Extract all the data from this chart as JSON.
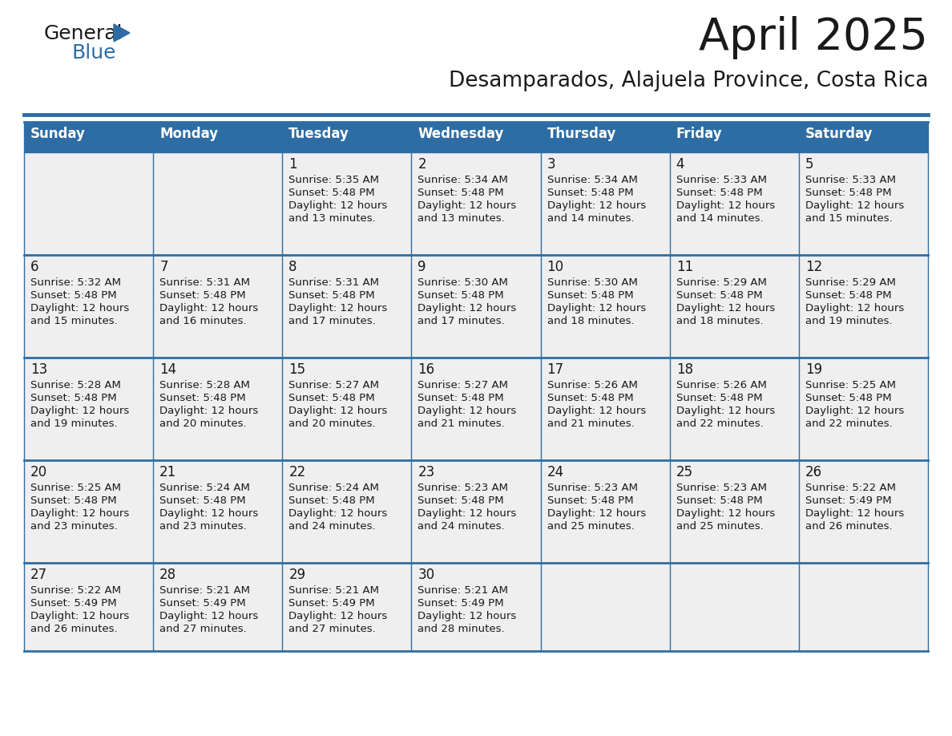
{
  "title": "April 2025",
  "subtitle": "Desamparados, Alajuela Province, Costa Rica",
  "header_bg_color": "#2E6DA4",
  "header_text_color": "#FFFFFF",
  "cell_bg_color": "#EFEFEF",
  "border_color": "#2E6DA4",
  "title_color": "#1a1a1a",
  "subtitle_color": "#1a1a1a",
  "day_names": [
    "Sunday",
    "Monday",
    "Tuesday",
    "Wednesday",
    "Thursday",
    "Friday",
    "Saturday"
  ],
  "logo_general_color": "#1a1a1a",
  "logo_blue_color": "#2E6DA4",
  "logo_triangle_color": "#2E6DA4",
  "days": [
    {
      "day": 1,
      "col": 2,
      "row": 0,
      "sunrise": "5:35 AM",
      "sunset": "5:48 PM",
      "daylight_suffix": "13 minutes."
    },
    {
      "day": 2,
      "col": 3,
      "row": 0,
      "sunrise": "5:34 AM",
      "sunset": "5:48 PM",
      "daylight_suffix": "13 minutes."
    },
    {
      "day": 3,
      "col": 4,
      "row": 0,
      "sunrise": "5:34 AM",
      "sunset": "5:48 PM",
      "daylight_suffix": "14 minutes."
    },
    {
      "day": 4,
      "col": 5,
      "row": 0,
      "sunrise": "5:33 AM",
      "sunset": "5:48 PM",
      "daylight_suffix": "14 minutes."
    },
    {
      "day": 5,
      "col": 6,
      "row": 0,
      "sunrise": "5:33 AM",
      "sunset": "5:48 PM",
      "daylight_suffix": "15 minutes."
    },
    {
      "day": 6,
      "col": 0,
      "row": 1,
      "sunrise": "5:32 AM",
      "sunset": "5:48 PM",
      "daylight_suffix": "15 minutes."
    },
    {
      "day": 7,
      "col": 1,
      "row": 1,
      "sunrise": "5:31 AM",
      "sunset": "5:48 PM",
      "daylight_suffix": "16 minutes."
    },
    {
      "day": 8,
      "col": 2,
      "row": 1,
      "sunrise": "5:31 AM",
      "sunset": "5:48 PM",
      "daylight_suffix": "17 minutes."
    },
    {
      "day": 9,
      "col": 3,
      "row": 1,
      "sunrise": "5:30 AM",
      "sunset": "5:48 PM",
      "daylight_suffix": "17 minutes."
    },
    {
      "day": 10,
      "col": 4,
      "row": 1,
      "sunrise": "5:30 AM",
      "sunset": "5:48 PM",
      "daylight_suffix": "18 minutes."
    },
    {
      "day": 11,
      "col": 5,
      "row": 1,
      "sunrise": "5:29 AM",
      "sunset": "5:48 PM",
      "daylight_suffix": "18 minutes."
    },
    {
      "day": 12,
      "col": 6,
      "row": 1,
      "sunrise": "5:29 AM",
      "sunset": "5:48 PM",
      "daylight_suffix": "19 minutes."
    },
    {
      "day": 13,
      "col": 0,
      "row": 2,
      "sunrise": "5:28 AM",
      "sunset": "5:48 PM",
      "daylight_suffix": "19 minutes."
    },
    {
      "day": 14,
      "col": 1,
      "row": 2,
      "sunrise": "5:28 AM",
      "sunset": "5:48 PM",
      "daylight_suffix": "20 minutes."
    },
    {
      "day": 15,
      "col": 2,
      "row": 2,
      "sunrise": "5:27 AM",
      "sunset": "5:48 PM",
      "daylight_suffix": "20 minutes."
    },
    {
      "day": 16,
      "col": 3,
      "row": 2,
      "sunrise": "5:27 AM",
      "sunset": "5:48 PM",
      "daylight_suffix": "21 minutes."
    },
    {
      "day": 17,
      "col": 4,
      "row": 2,
      "sunrise": "5:26 AM",
      "sunset": "5:48 PM",
      "daylight_suffix": "21 minutes."
    },
    {
      "day": 18,
      "col": 5,
      "row": 2,
      "sunrise": "5:26 AM",
      "sunset": "5:48 PM",
      "daylight_suffix": "22 minutes."
    },
    {
      "day": 19,
      "col": 6,
      "row": 2,
      "sunrise": "5:25 AM",
      "sunset": "5:48 PM",
      "daylight_suffix": "22 minutes."
    },
    {
      "day": 20,
      "col": 0,
      "row": 3,
      "sunrise": "5:25 AM",
      "sunset": "5:48 PM",
      "daylight_suffix": "23 minutes."
    },
    {
      "day": 21,
      "col": 1,
      "row": 3,
      "sunrise": "5:24 AM",
      "sunset": "5:48 PM",
      "daylight_suffix": "23 minutes."
    },
    {
      "day": 22,
      "col": 2,
      "row": 3,
      "sunrise": "5:24 AM",
      "sunset": "5:48 PM",
      "daylight_suffix": "24 minutes."
    },
    {
      "day": 23,
      "col": 3,
      "row": 3,
      "sunrise": "5:23 AM",
      "sunset": "5:48 PM",
      "daylight_suffix": "24 minutes."
    },
    {
      "day": 24,
      "col": 4,
      "row": 3,
      "sunrise": "5:23 AM",
      "sunset": "5:48 PM",
      "daylight_suffix": "25 minutes."
    },
    {
      "day": 25,
      "col": 5,
      "row": 3,
      "sunrise": "5:23 AM",
      "sunset": "5:48 PM",
      "daylight_suffix": "25 minutes."
    },
    {
      "day": 26,
      "col": 6,
      "row": 3,
      "sunrise": "5:22 AM",
      "sunset": "5:49 PM",
      "daylight_suffix": "26 minutes."
    },
    {
      "day": 27,
      "col": 0,
      "row": 4,
      "sunrise": "5:22 AM",
      "sunset": "5:49 PM",
      "daylight_suffix": "26 minutes."
    },
    {
      "day": 28,
      "col": 1,
      "row": 4,
      "sunrise": "5:21 AM",
      "sunset": "5:49 PM",
      "daylight_suffix": "27 minutes."
    },
    {
      "day": 29,
      "col": 2,
      "row": 4,
      "sunrise": "5:21 AM",
      "sunset": "5:49 PM",
      "daylight_suffix": "27 minutes."
    },
    {
      "day": 30,
      "col": 3,
      "row": 4,
      "sunrise": "5:21 AM",
      "sunset": "5:49 PM",
      "daylight_suffix": "28 minutes."
    }
  ]
}
